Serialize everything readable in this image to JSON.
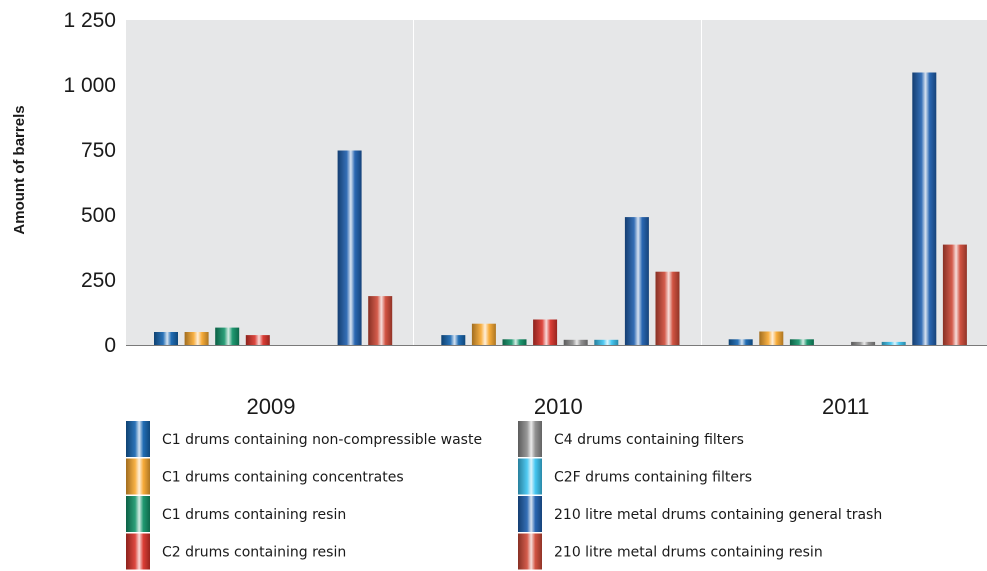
{
  "chart_data": {
    "type": "bar",
    "ylabel": "Amount of barrels",
    "categories": [
      "2009",
      "2010",
      "2011"
    ],
    "ylim": [
      0,
      1250
    ],
    "yticks": [
      {
        "value": 0,
        "label": "0"
      },
      {
        "value": 250,
        "label": "250"
      },
      {
        "value": 500,
        "label": "500"
      },
      {
        "value": 750,
        "label": "750"
      },
      {
        "value": 1000,
        "label": "1 000"
      },
      {
        "value": 1250,
        "label": "1 250"
      }
    ],
    "grid": "vertical separators between categories",
    "legend_position": "bottom",
    "series": [
      {
        "name": "C1 drums containing non-compressible waste",
        "color": "#1565b0",
        "values": [
          50,
          38,
          22
        ]
      },
      {
        "name": "C1 drums containing concentrates",
        "color": "#f7a830",
        "values": [
          50,
          82,
          52
        ]
      },
      {
        "name": "C1 drums containing resin",
        "color": "#13946a",
        "values": [
          67,
          22,
          22
        ]
      },
      {
        "name": "C2 drums containing resin",
        "color": "#d9342b",
        "values": [
          38,
          98,
          0
        ]
      },
      {
        "name": "C4 drums containing filters",
        "color": "#8c8c8c",
        "values": [
          0,
          20,
          12
        ]
      },
      {
        "name": "C2F drums containing filters",
        "color": "#3cc4f0",
        "values": [
          0,
          20,
          12
        ]
      },
      {
        "name": "210 litre metal drums containing general trash",
        "color": "#1f5fae",
        "values": [
          748,
          492,
          1048
        ]
      },
      {
        "name": "210 litre metal drums containing resin",
        "color": "#cf4a38",
        "values": [
          188,
          282,
          386
        ]
      }
    ]
  }
}
